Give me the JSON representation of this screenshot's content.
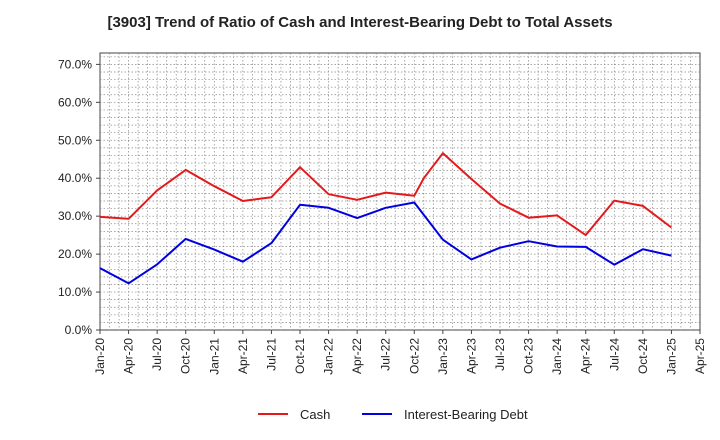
{
  "chart_data": {
    "type": "line",
    "title": "[3903]  Trend of Ratio of Cash and Interest-Bearing Debt to Total Assets",
    "xlabel": "",
    "ylabel": "",
    "x_tick_labels": [
      "Jan-20",
      "Apr-20",
      "Jul-20",
      "Oct-20",
      "Jan-21",
      "Apr-21",
      "Jul-21",
      "Oct-21",
      "Jan-22",
      "Apr-22",
      "Jul-22",
      "Oct-22",
      "Jan-23",
      "Apr-23",
      "Jul-23",
      "Oct-23",
      "Jan-24",
      "Apr-24",
      "Jul-24",
      "Oct-24",
      "Jan-25",
      "Apr-25"
    ],
    "y_tick_labels": [
      "0.0%",
      "10.0%",
      "20.0%",
      "30.0%",
      "40.0%",
      "50.0%",
      "60.0%",
      "70.0%"
    ],
    "ylim": [
      0,
      73
    ],
    "grid": true,
    "legend_position": "bottom",
    "series": [
      {
        "name": "Cash",
        "color": "#e31a1c",
        "x": [
          "Jan-20",
          "Apr-20",
          "Jul-20",
          "Oct-20",
          "Jan-21",
          "Apr-21",
          "Jul-21",
          "Oct-21",
          "Jan-22",
          "Apr-22",
          "Jul-22",
          "Oct-22",
          "Nov-22",
          "Jan-23",
          "Apr-23",
          "Jul-23",
          "Oct-23",
          "Jan-24",
          "Apr-24",
          "Jul-24",
          "Oct-24",
          "Jan-25"
        ],
        "values": [
          29.8,
          29.3,
          36.8,
          42.2,
          37.9,
          34.0,
          35.0,
          42.9,
          35.8,
          34.3,
          36.2,
          35.4,
          40.0,
          46.6,
          39.8,
          33.3,
          29.6,
          30.2,
          25.0,
          34.1,
          32.7,
          27.0
        ]
      },
      {
        "name": "Interest-Bearing Debt",
        "color": "#0000e0",
        "x": [
          "Jan-20",
          "Apr-20",
          "Jul-20",
          "Oct-20",
          "Jan-21",
          "Apr-21",
          "Jul-21",
          "Oct-21",
          "Jan-22",
          "Apr-22",
          "Jul-22",
          "Oct-22",
          "Jan-23",
          "Apr-23",
          "Jul-23",
          "Oct-23",
          "Jan-24",
          "Apr-24",
          "Jul-24",
          "Oct-24",
          "Jan-25"
        ],
        "values": [
          16.3,
          12.3,
          17.3,
          24.0,
          21.2,
          18.0,
          22.9,
          33.0,
          32.2,
          29.5,
          32.2,
          33.6,
          23.8,
          18.6,
          21.7,
          23.4,
          22.0,
          21.9,
          17.2,
          21.3,
          19.6
        ]
      }
    ]
  }
}
